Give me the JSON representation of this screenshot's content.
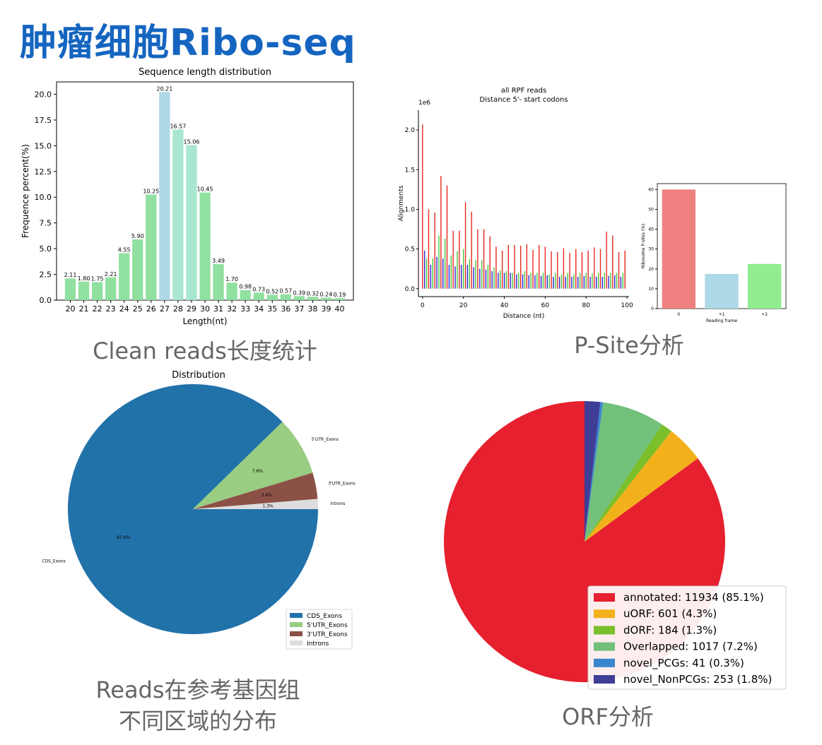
{
  "page": {
    "heading": "肿瘤细胞Ribo-seq",
    "captions": {
      "length": "Clean reads长度统计",
      "psite": "P-Site分析",
      "dist_line1": "Reads在参考基因组",
      "dist_line2": "不同区域的分布",
      "orf": "ORF分析"
    }
  },
  "chart_data": [
    {
      "id": "length",
      "type": "bar",
      "title": "Sequence length distribution",
      "xlabel": "Length(nt)",
      "ylabel": "Frequence percent(%)",
      "ylim": [
        0,
        21.2
      ],
      "yticks": [
        0.0,
        2.5,
        5.0,
        7.5,
        10.0,
        12.5,
        15.0,
        17.5,
        20.0
      ],
      "categories": [
        "20",
        "21",
        "22",
        "23",
        "24",
        "25",
        "26",
        "27",
        "28",
        "29",
        "30",
        "31",
        "32",
        "33",
        "34",
        "35",
        "36",
        "37",
        "38",
        "39",
        "40"
      ],
      "values": [
        2.11,
        1.8,
        1.75,
        2.21,
        4.55,
        5.9,
        10.25,
        20.21,
        16.57,
        15.06,
        10.45,
        3.49,
        1.7,
        0.98,
        0.73,
        0.52,
        0.57,
        0.39,
        0.32,
        0.24,
        0.19
      ],
      "labels": [
        "2.11",
        "1.80",
        "1.75",
        "2.21",
        "4.55",
        "5.90",
        "10.25",
        "20.21",
        "16.57",
        "15.06",
        "10.45",
        "3.49",
        "1.70",
        "0.98",
        "0.73",
        "0.52",
        "0.57",
        "0.39",
        "0.32",
        "0.24",
        "0.19"
      ],
      "colors": {
        "default": "#90e0a0",
        "highlight": [
          "#add8e6",
          "#a8e6cf",
          "#a8e6cf",
          "#add8e6"
        ]
      },
      "highlight_indices": [
        7,
        8,
        9
      ],
      "highlight_colors": [
        "#add8e6",
        "#a8e6cf",
        "#a8e6cf"
      ],
      "grid": false
    },
    {
      "id": "psite_line",
      "type": "bar",
      "title_lines": [
        "all RPF reads",
        "Distance 5'- start codons"
      ],
      "xlabel": "Distance (nt)",
      "ylabel": "Alignments",
      "offset_label": "1e6",
      "xlim": [
        -2,
        101
      ],
      "ylim": [
        -0.1,
        2.25
      ],
      "xticks": [
        0,
        20,
        40,
        60,
        80,
        100
      ],
      "yticks": [
        0.0,
        0.5,
        1.0,
        1.5,
        2.0
      ],
      "frame_colors": [
        "#e8281e",
        "#2a2ad0",
        "#4cc63c"
      ],
      "values": [
        2.07,
        0.48,
        0.38,
        1.0,
        0.3,
        0.38,
        0.96,
        0.4,
        0.67,
        1.42,
        0.38,
        0.63,
        1.3,
        0.3,
        0.42,
        0.73,
        0.28,
        0.47,
        0.73,
        0.3,
        0.5,
        1.09,
        0.3,
        0.37,
        0.97,
        0.27,
        0.36,
        0.75,
        0.25,
        0.36,
        0.75,
        0.24,
        0.3,
        0.66,
        0.22,
        0.27,
        0.53,
        0.2,
        0.23,
        0.48,
        0.2,
        0.22,
        0.55,
        0.2,
        0.2,
        0.55,
        0.18,
        0.2,
        0.54,
        0.18,
        0.22,
        0.56,
        0.17,
        0.2,
        0.49,
        0.17,
        0.2,
        0.55,
        0.16,
        0.2,
        0.53,
        0.17,
        0.18,
        0.47,
        0.15,
        0.2,
        0.46,
        0.15,
        0.18,
        0.51,
        0.15,
        0.2,
        0.45,
        0.15,
        0.18,
        0.5,
        0.15,
        0.2,
        0.46,
        0.16,
        0.2,
        0.48,
        0.15,
        0.19,
        0.52,
        0.15,
        0.2,
        0.5,
        0.15,
        0.2,
        0.72,
        0.16,
        0.2,
        0.67,
        0.17,
        0.2,
        0.46,
        0.15,
        0.2,
        0.48
      ],
      "grid": false
    },
    {
      "id": "psite_frame",
      "type": "bar",
      "xlabel": "Reading frame",
      "ylabel": "Ribosome P-sites (%)",
      "categories": [
        "0",
        "+1",
        "+2"
      ],
      "values": [
        60,
        17.5,
        22.5
      ],
      "colors": [
        "#f08080",
        "#add8e6",
        "#90ee90"
      ],
      "ylim": [
        0,
        63
      ],
      "yticks": [
        0,
        10,
        20,
        30,
        40,
        50,
        60
      ]
    },
    {
      "id": "distribution",
      "type": "pie",
      "title": "Distribution",
      "slices": [
        {
          "name": "CDS_Exons",
          "value": 87.6,
          "label": "87.6%",
          "color": "#2272aa"
        },
        {
          "name": "5'UTR_Exons",
          "value": 7.6,
          "label": "7.6%",
          "color": "#98cd82"
        },
        {
          "name": "3'UTR_Exons",
          "value": 3.4,
          "label": "3.4%",
          "color": "#8c5146"
        },
        {
          "name": "Introns",
          "value": 1.3,
          "label": "1.3%",
          "color": "#dddddd"
        }
      ],
      "outer_labels": [
        "CDS_Exons",
        "5'UTR_Exons",
        "3'UTR_Exons",
        "Introns"
      ],
      "legend": [
        "CDS_Exons",
        "5'UTR_Exons",
        "3'UTR_Exons",
        "Introns"
      ],
      "legend_placement": "lower-right"
    },
    {
      "id": "orf",
      "type": "pie",
      "slices": [
        {
          "name": "annotated",
          "value": 85.1,
          "color": "#e6202e"
        },
        {
          "name": "uORF",
          "value": 4.3,
          "color": "#f2b11a"
        },
        {
          "name": "dORF",
          "value": 1.3,
          "color": "#7bbf2a"
        },
        {
          "name": "Overlapped",
          "value": 7.2,
          "color": "#72c07a"
        },
        {
          "name": "novel_PCGs",
          "value": 0.3,
          "color": "#3a85cf"
        },
        {
          "name": "novel_NonPCGs",
          "value": 1.8,
          "color": "#3e3e96"
        }
      ],
      "legend": [
        "annotated: 11934 (85.1%)",
        "uORF: 601 (4.3%)",
        "dORF: 184 (1.3%)",
        "Overlapped: 1017 (7.2%)",
        "novel_PCGs: 41 (0.3%)",
        "novel_NonPCGs: 253 (1.8%)"
      ],
      "legend_placement": "lower-right"
    }
  ]
}
